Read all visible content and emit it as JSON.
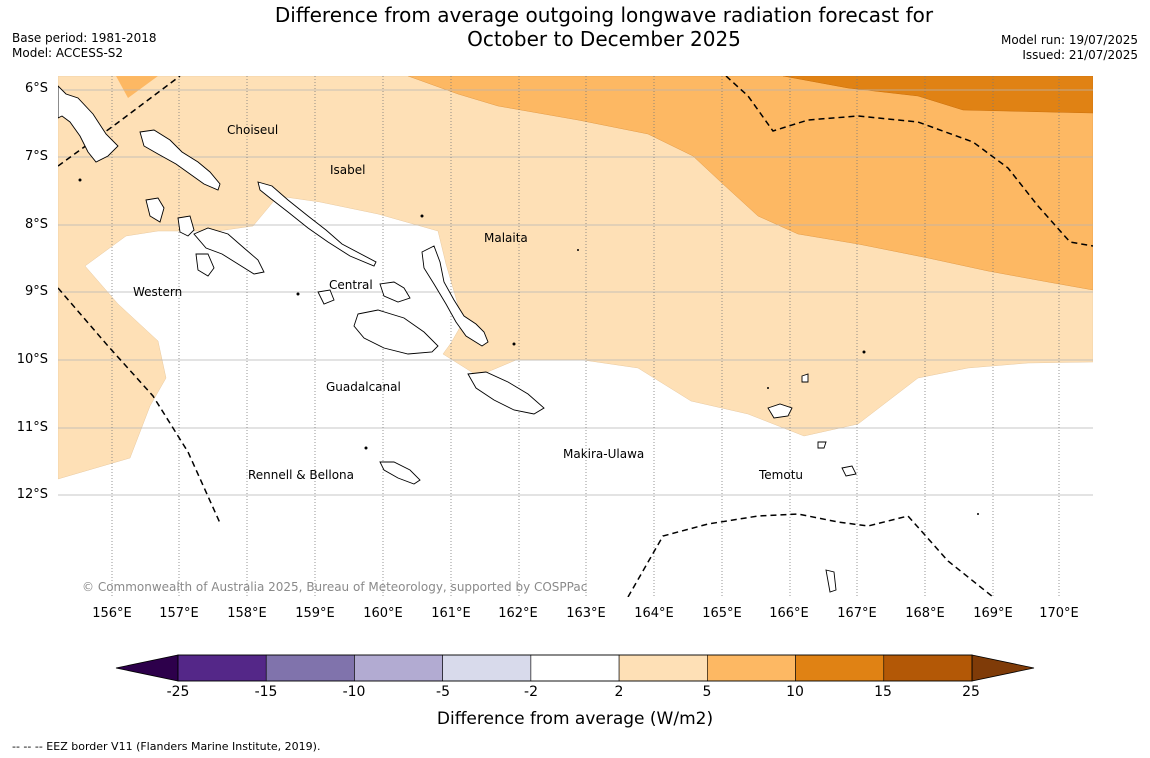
{
  "title_line1": "Difference from average outgoing longwave radiation forecast for",
  "title_line2": "October to December 2025",
  "base_period": "Base period: 1981-2018",
  "model": "Model: ACCESS-S2",
  "model_run": "Model run: 19/07/2025",
  "issued": "Issued: 21/07/2025",
  "lat_labels": [
    "6°S",
    "7°S",
    "8°S",
    "9°S",
    "10°S",
    "11°S",
    "12°S"
  ],
  "lon_labels": [
    "156°E",
    "157°E",
    "158°E",
    "159°E",
    "160°E",
    "161°E",
    "162°E",
    "163°E",
    "164°E",
    "165°E",
    "166°E",
    "167°E",
    "168°E",
    "169°E",
    "170°E"
  ],
  "regions": {
    "choiseul": "Choiseul",
    "isabel": "Isabel",
    "malaita": "Malaita",
    "western": "Western",
    "central": "Central",
    "guadalcanal": "Guadalcanal",
    "makira": "Makira-Ulawa",
    "temotu": "Temotu",
    "rennell": "Rennell & Bellona"
  },
  "copyright": "© Commonwealth of Australia 2025, Bureau of Meteorology, supported by COSPPac",
  "colorbar": {
    "labels": [
      "-25",
      "-15",
      "-10",
      "-5",
      "-2",
      "2",
      "5",
      "10",
      "15",
      "25"
    ],
    "colors": [
      "#542788",
      "#8073ac",
      "#b2abd2",
      "#d8daeb",
      "#ffffff",
      "#fee0b6",
      "#fdb863",
      "#e08214",
      "#b35806"
    ],
    "under_color": "#2d004b",
    "over_color": "#7f3b08",
    "title": "Difference from average (W/m2)"
  },
  "footnote": "--  --  -- EEZ border V11 (Flanders Marine Institute, 2019)."
}
